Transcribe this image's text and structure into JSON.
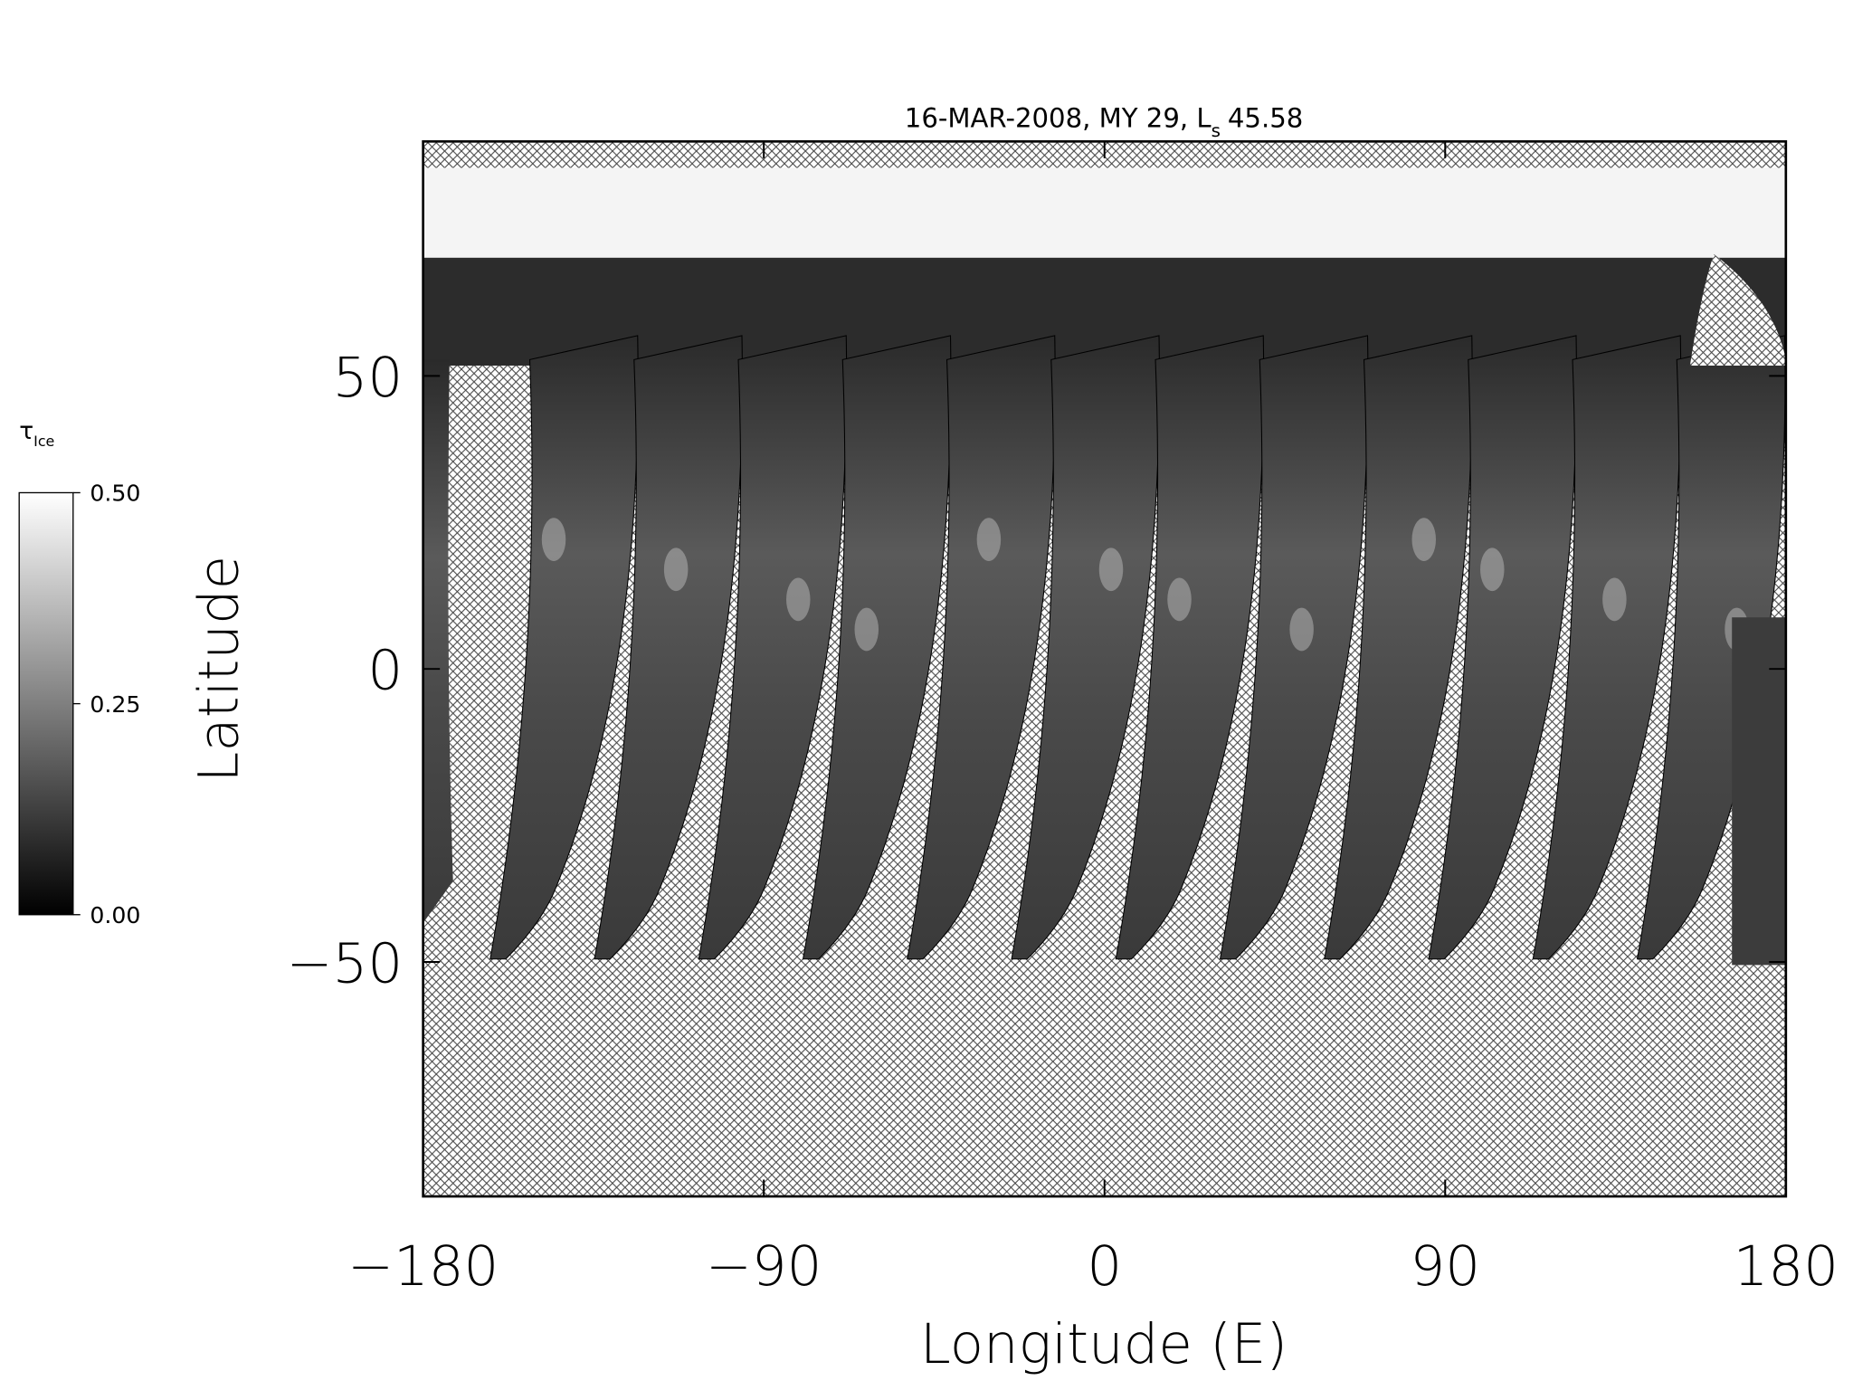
{
  "chart_data": {
    "type": "map",
    "title": "16-MAR-2008, MY 29,  L",
    "title_subscript": "s",
    "title_value": "45.58",
    "xlabel": "Longitude (E)",
    "ylabel": "Latitude",
    "xlim": [
      -180,
      180
    ],
    "ylim": [
      -90,
      90
    ],
    "xticks": [
      {
        "value": -180,
        "label": "−180"
      },
      {
        "value": -90,
        "label": "−90"
      },
      0,
      90,
      180
    ],
    "yticks": [
      {
        "value": -50,
        "label": "−50"
      },
      0,
      50
    ],
    "colorbar": {
      "label": "τ",
      "label_subscript": "Ice",
      "lim": [
        0,
        0.5
      ],
      "ticks": [
        {
          "value": 0.5,
          "label": "0.50"
        },
        {
          "value": 0.25,
          "label": "0.25"
        },
        {
          "value": 0,
          "label": "0.00"
        }
      ],
      "colors": [
        "#000000",
        "#ffffff"
      ]
    }
  }
}
